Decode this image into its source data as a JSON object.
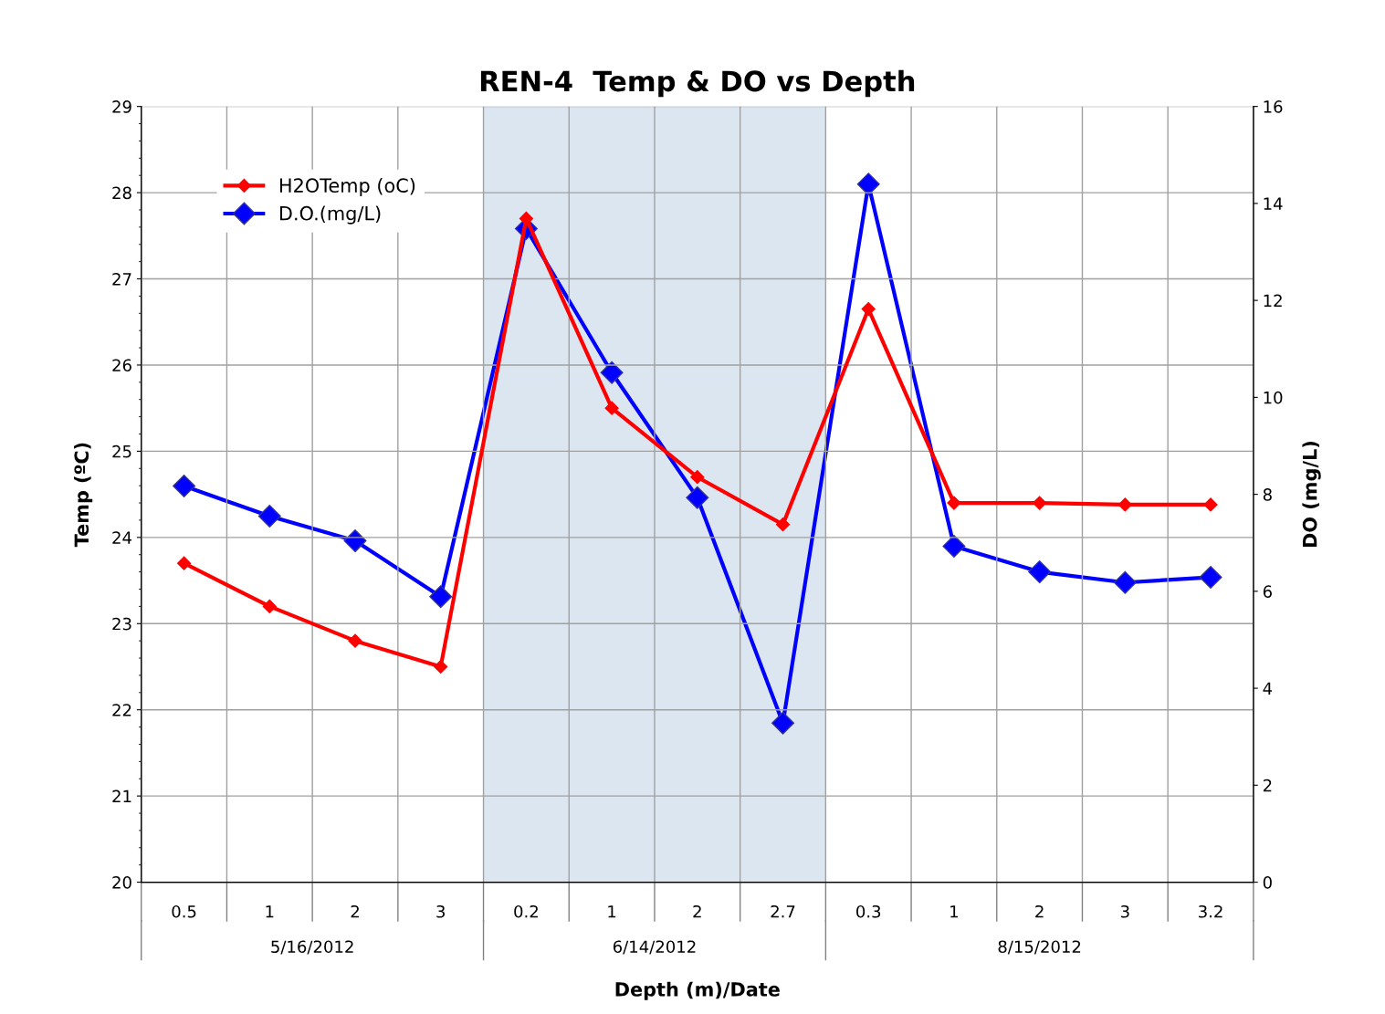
{
  "chart_data": {
    "type": "line",
    "title": "REN-4  Temp & DO vs Depth",
    "xlabel": "Depth (m)/Date",
    "ylabel": "Temp (ºC)",
    "y2label": "DO (mg/L)",
    "categories": [
      "0.5",
      "1",
      "2",
      "3",
      "0.2",
      "1",
      "2",
      "2.7",
      "0.3",
      "1",
      "2",
      "3",
      "3.2"
    ],
    "series": [
      {
        "name": "H2OTemp (oC)",
        "color": "#ff0000",
        "values": [
          23.7,
          23.2,
          22.8,
          22.5,
          27.7,
          25.5,
          24.7,
          24.15,
          26.65,
          24.4,
          24.4,
          24.38,
          24.38
        ]
      },
      {
        "name": "D.O.(mg/L)",
        "color": "#0000ff",
        "axis": "y2",
        "values": [
          8.17,
          7.55,
          7.04,
          5.89,
          13.48,
          10.51,
          7.93,
          3.28,
          14.4,
          6.93,
          6.4,
          6.18,
          6.29
        ]
      }
    ],
    "ylim": [
      20,
      29
    ],
    "yticks": [
      20,
      21,
      22,
      23,
      24,
      25,
      26,
      27,
      28,
      29
    ],
    "y2lim": [
      0,
      16
    ],
    "y2ticks": [
      0,
      2,
      4,
      6,
      8,
      10,
      12,
      14,
      16
    ],
    "bands": [
      {
        "axis": "x",
        "from": "0.2",
        "to": "2.7",
        "color": "#dce6f1"
      }
    ],
    "annotations": [
      "5/16/2012",
      "6/14/2012",
      "8/15/2012"
    ],
    "grid": true,
    "legend": "top left",
    "marker": "diamond",
    "line_style": "solid"
  }
}
